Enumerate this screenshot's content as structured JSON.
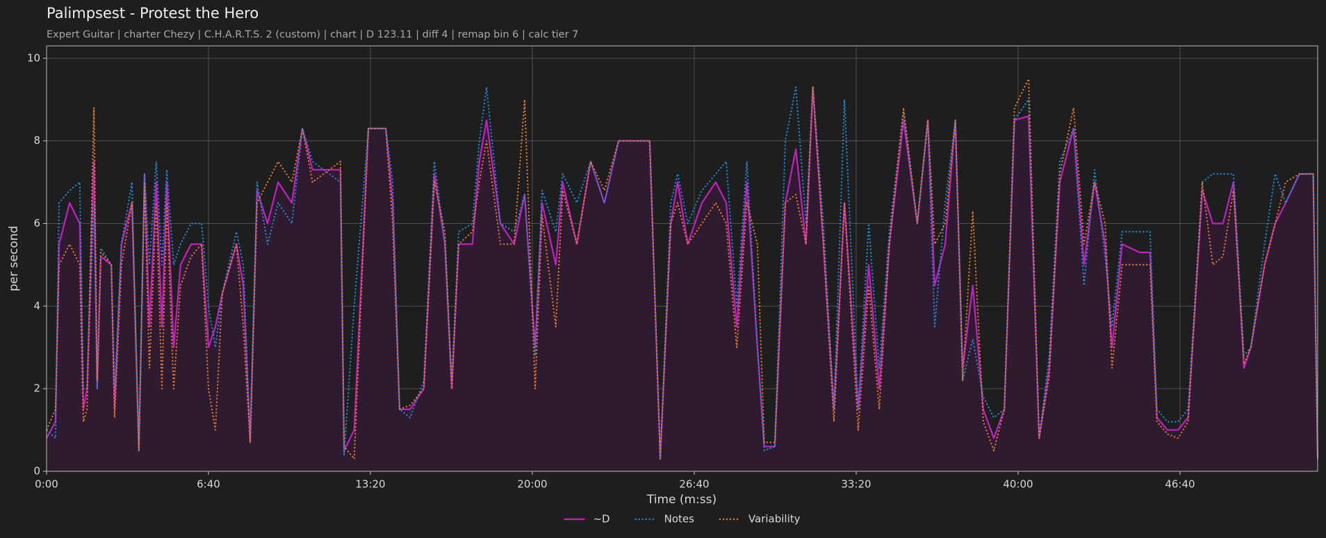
{
  "chart_data": {
    "type": "line",
    "title": "Palimpsest - Protest the Hero",
    "subtitle": "Expert Guitar  |  charter Chezy  |  C.H.A.R.T.S. 2 (custom)  |  chart  |  D 123.11  |  diff 4  |  remap bin 6  |  calc tier 7",
    "xlabel": "Time (m:ss)",
    "ylabel": "per second",
    "xlim": [
      0,
      3140
    ],
    "ylim": [
      0,
      10.3
    ],
    "xticks": [
      {
        "value": 0,
        "label": "0:00"
      },
      {
        "value": 400,
        "label": "6:40"
      },
      {
        "value": 800,
        "label": "13:20"
      },
      {
        "value": 1200,
        "label": "20:00"
      },
      {
        "value": 1600,
        "label": "26:40"
      },
      {
        "value": 2000,
        "label": "33:20"
      },
      {
        "value": 2400,
        "label": "40:00"
      },
      {
        "value": 2800,
        "label": "46:40"
      }
    ],
    "yticks": [
      0,
      2,
      4,
      6,
      8,
      10
    ],
    "grid": true,
    "legend": "bottom center",
    "area_color": "#2f1b2f",
    "x": [
      0,
      22,
      31,
      57,
      82,
      91,
      100,
      117,
      125,
      134,
      160,
      168,
      185,
      211,
      228,
      242,
      254,
      271,
      285,
      297,
      314,
      331,
      357,
      383,
      400,
      417,
      434,
      469,
      486,
      503,
      520,
      546,
      572,
      606,
      632,
      657,
      726,
      735,
      760,
      795,
      838,
      855,
      872,
      898,
      932,
      958,
      984,
      1001,
      1018,
      1052,
      1069,
      1087,
      1121,
      1155,
      1181,
      1207,
      1224,
      1258,
      1275,
      1310,
      1344,
      1378,
      1413,
      1490,
      1516,
      1542,
      1559,
      1584,
      1619,
      1653,
      1679,
      1705,
      1730,
      1756,
      1773,
      1799,
      1825,
      1851,
      1876,
      1893,
      1919,
      1945,
      1971,
      2005,
      2031,
      2057,
      2082,
      2117,
      2151,
      2177,
      2194,
      2220,
      2245,
      2263,
      2288,
      2314,
      2340,
      2366,
      2391,
      2426,
      2452,
      2477,
      2503,
      2537,
      2563,
      2589,
      2615,
      2632,
      2657,
      2700,
      2726,
      2743,
      2769,
      2795,
      2820,
      2855,
      2881,
      2906,
      2932,
      2958,
      2975,
      3009,
      3035,
      3061,
      3095,
      3129,
      3140
    ],
    "series": [
      {
        "name": "~D",
        "color": "#c41fc4",
        "linestyle": "solid",
        "fill": true,
        "values": [
          0.8,
          1.2,
          5.5,
          6.5,
          6,
          1.5,
          2,
          7.5,
          2,
          5.2,
          5,
          1.5,
          5.5,
          6.5,
          0.5,
          7.2,
          3.5,
          7,
          3.5,
          7,
          3,
          5,
          5.5,
          5.5,
          3,
          3.5,
          4.3,
          5.5,
          4.5,
          0.7,
          6.8,
          6,
          7,
          6.5,
          8.3,
          7.3,
          7.3,
          0.5,
          1,
          8.3,
          8.3,
          6.5,
          1.5,
          1.5,
          2,
          7.2,
          5.5,
          2,
          5.5,
          5.5,
          7.5,
          8.5,
          6,
          5.5,
          6.7,
          3,
          6.5,
          5,
          7,
          5.5,
          7.5,
          6.5,
          8,
          8,
          0.3,
          6,
          7,
          5.5,
          6.5,
          7,
          6.5,
          3.5,
          7,
          3,
          0.6,
          0.6,
          6.5,
          7.8,
          5.5,
          9.3,
          5.5,
          1.5,
          6.5,
          1.5,
          5,
          2,
          5.5,
          8.5,
          6,
          8.5,
          4.5,
          5.5,
          8.5,
          2.5,
          4.5,
          1.5,
          0.8,
          1.5,
          8.5,
          8.6,
          0.8,
          2.5,
          7,
          8.3,
          5,
          7,
          5.5,
          3,
          5.5,
          5.3,
          5.3,
          1.3,
          1,
          1,
          1.3,
          6.8,
          6,
          6,
          7,
          2.5,
          3,
          5,
          6,
          6.5,
          7.2,
          7.2,
          0.3
        ]
      },
      {
        "name": "Notes",
        "color": "#1f8dd6",
        "linestyle": "dotted",
        "values": [
          1,
          0.8,
          6.5,
          6.8,
          7,
          2,
          2,
          6.5,
          2,
          5.4,
          5,
          2,
          5.5,
          7,
          0.5,
          7.2,
          5,
          7.5,
          5,
          7.3,
          5,
          5.5,
          6,
          6,
          4,
          3,
          4.3,
          5.8,
          5,
          0.8,
          7,
          5.5,
          6.5,
          6,
          8.3,
          7.5,
          7,
          0.4,
          4,
          8.3,
          8.3,
          7,
          1.5,
          1.3,
          2.2,
          7.5,
          5.5,
          2.2,
          5.8,
          6,
          8,
          9.3,
          6,
          5.8,
          6.7,
          2.8,
          6.8,
          5.8,
          7.2,
          6.5,
          7.5,
          6.5,
          8,
          8,
          0.3,
          6.5,
          7.2,
          6,
          6.8,
          7.2,
          7.5,
          4,
          7.5,
          3,
          0.5,
          0.6,
          8,
          9.3,
          6,
          9.3,
          6,
          1.5,
          9,
          1.5,
          6,
          2.5,
          5.8,
          8.7,
          6,
          8.5,
          3.5,
          6.5,
          8.5,
          2.2,
          3.2,
          1.8,
          1.3,
          1.5,
          8.5,
          9,
          0.8,
          2.8,
          7.5,
          8.3,
          4.5,
          7.3,
          5.2,
          3.5,
          5.8,
          5.8,
          5.8,
          1.5,
          1.2,
          1.2,
          1.5,
          7,
          7.2,
          7.2,
          7.2,
          2.8,
          3,
          5.5,
          7.2,
          6.5,
          7.2,
          7.2,
          0.3
        ]
      },
      {
        "name": "Variability",
        "color": "#e8792a",
        "linestyle": "dotted",
        "values": [
          1,
          1.5,
          5,
          5.5,
          5,
          1.2,
          1.5,
          8.8,
          2.2,
          5.3,
          5,
          1.3,
          5,
          6.5,
          0.5,
          7,
          2.5,
          6.5,
          2,
          6.5,
          2,
          4.5,
          5.2,
          5.5,
          2,
          1,
          4.3,
          5.5,
          3.5,
          0.7,
          6.5,
          7,
          7.5,
          7,
          8.3,
          7,
          7.5,
          0.6,
          0.3,
          8.3,
          8.3,
          6,
          1.5,
          1.6,
          2,
          7,
          5.8,
          2,
          5.5,
          5.8,
          7,
          8,
          5.5,
          5.5,
          9,
          2,
          6.2,
          3.5,
          6.8,
          5.5,
          7.5,
          6.8,
          8,
          8,
          0.3,
          6,
          6.5,
          5.5,
          6,
          6.5,
          6,
          3,
          6.5,
          5.5,
          0.7,
          0.7,
          6.5,
          6.7,
          5.5,
          9.3,
          5.5,
          1.2,
          6.5,
          1,
          4.5,
          1.5,
          5.5,
          8.8,
          6,
          8.5,
          5.5,
          6,
          8.5,
          2.2,
          6.3,
          1.2,
          0.5,
          1.5,
          8.8,
          9.5,
          0.8,
          2.3,
          7.2,
          8.8,
          5.5,
          7,
          6,
          2.5,
          5,
          5,
          5,
          1.2,
          0.9,
          0.8,
          1.2,
          7,
          5,
          5.2,
          6.8,
          2.6,
          3,
          5,
          6,
          7,
          7.2,
          7.2,
          0.3
        ]
      }
    ]
  }
}
